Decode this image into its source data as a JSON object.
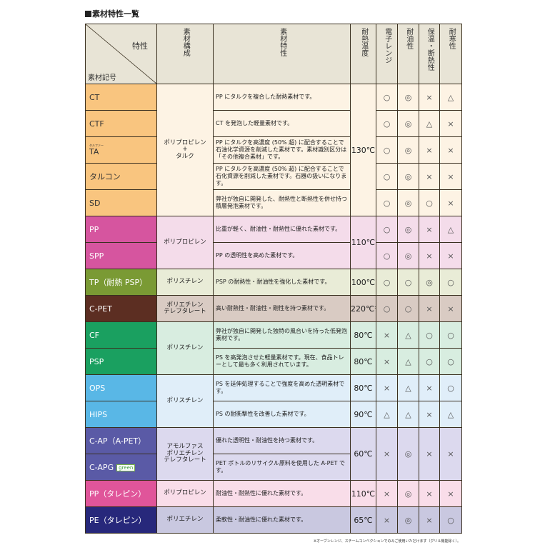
{
  "title": "素材特性一覧",
  "header": {
    "property": "特性",
    "material_code": "素材記号",
    "composition": "素材構成",
    "characteristics": "素材特性",
    "heat": "耐熱温度",
    "microwave": "電子レンジ",
    "oil": "耐油性",
    "insulation": "保温・断熱性",
    "cold": "耐寒性"
  },
  "groups": [
    {
      "code_bg": "#f9c57f",
      "code_color": "#333333",
      "bg": "#fdf3e4",
      "composition": "ポリプロピレン\n+\nタルク",
      "rows": [
        {
          "code": "CT",
          "desc": "PP にタルクを複合した耐熱素材です。",
          "temp": "130℃",
          "marks": [
            "○",
            "◎",
            "×",
            "△"
          ]
        },
        {
          "code": "CTF",
          "desc": "CT を発泡した軽量素材です。",
          "temp": "",
          "marks": [
            "○",
            "◎",
            "△",
            "×"
          ]
        },
        {
          "code": "TA",
          "ruby": "タルファー",
          "desc": "PP にタルクを高濃度 (50% 超) に配合することで石油化学資源を削減した素材です。素材識別区分は「その他複合素材」です。",
          "temp": "",
          "marks": [
            "○",
            "◎",
            "×",
            "×"
          ]
        },
        {
          "code": "タルコン",
          "desc": "PP にタルクを高濃度 (50% 超) に配合することで石化資源を削減した素材です。石器の扱いになります。",
          "temp": "",
          "marks": [
            "○",
            "◎",
            "×",
            "×"
          ]
        },
        {
          "code": "SD",
          "desc": "弊社が独自に開発した、耐熱性と断熱性を併せ持つ積層発泡素材です。",
          "temp": "",
          "marks": [
            "○",
            "◎",
            "○",
            "×"
          ]
        }
      ]
    },
    {
      "code_bg": "#d6559f",
      "code_color": "#ffffff",
      "bg": "#f4dcea",
      "composition": "ポリプロピレン",
      "rows": [
        {
          "code": "PP",
          "desc": "比重が軽く、耐油性・耐熱性に優れた素材です。",
          "temp": "110℃",
          "marks": [
            "○",
            "◎",
            "×",
            "△"
          ]
        },
        {
          "code": "SPP",
          "desc": "PP の透明性を高めた素材です。",
          "temp": "",
          "marks": [
            "○",
            "◎",
            "×",
            "×"
          ]
        }
      ]
    },
    {
      "code_bg": "#7a9a34",
      "code_color": "#ffffff",
      "bg": "#e9ecd7",
      "composition": "ポリスチレン",
      "rows": [
        {
          "code": "TP（耐熱 PSP）",
          "desc": "PSP の耐熱性・耐油性を強化した素材です。",
          "temp": "100℃",
          "marks": [
            "○",
            "○",
            "◎",
            "○"
          ]
        }
      ]
    },
    {
      "code_bg": "#5c2e22",
      "code_color": "#ffffff",
      "bg": "#d9cbc3",
      "composition": "ポリエチレン\nテレフタレート",
      "rows": [
        {
          "code": "C-PET",
          "desc": "高い耐熱性・耐油性・剛性を持つ素材です。",
          "temp": "220℃*",
          "marks": [
            "○",
            "○",
            "×",
            "×"
          ]
        }
      ]
    },
    {
      "code_bg": "#1aa060",
      "code_color": "#ffffff",
      "bg": "#d8ede0",
      "composition": "ポリスチレン",
      "rows": [
        {
          "code": "CF",
          "desc": "弊社が独自に開発した独特の風合いを持った低発泡素材です。",
          "temp": "80℃",
          "marks": [
            "×",
            "△",
            "○",
            "○"
          ]
        },
        {
          "code": "PSP",
          "desc": "PS を高発泡させた軽量素材です。現在、食品トレーとして最も多く利用されています。",
          "temp": "80℃",
          "marks": [
            "×",
            "△",
            "○",
            "○"
          ]
        }
      ]
    },
    {
      "code_bg": "#59b7e6",
      "code_color": "#ffffff",
      "bg": "#e0eef9",
      "composition": "ポリスチレン",
      "rows": [
        {
          "code": "OPS",
          "desc": "PS を延伸処理することで強度を高めた透明素材です。",
          "temp": "80℃",
          "marks": [
            "×",
            "△",
            "×",
            "○"
          ]
        },
        {
          "code": "HIPS",
          "desc": "PS の耐衝撃性を改善した素材です。",
          "temp": "90℃",
          "marks": [
            "△",
            "△",
            "×",
            "△"
          ]
        }
      ]
    },
    {
      "code_bg": "#5a5aa6",
      "code_color": "#ffffff",
      "bg": "#dcd9ee",
      "composition": "アモルファス\nポリエチレン\nテレフタレート",
      "rows": [
        {
          "code": "C-AP（A-PET）",
          "desc": "優れた透明性・耐油性を持つ素材です。",
          "temp": "60℃",
          "marks": [
            "×",
            "◎",
            "×",
            "×"
          ]
        },
        {
          "code": "C-APG",
          "badge": "green",
          "desc": "PET ボトルのリサイクル原料を使用した A-PET です。",
          "temp": "",
          "marks": null
        }
      ]
    },
    {
      "code_bg": "#e0559a",
      "code_color": "#ffffff",
      "bg": "#f9dde9",
      "composition": "ポリプロピレン",
      "rows": [
        {
          "code": "PP（タレピン）",
          "desc": "耐油性・耐熱性に優れた素材です。",
          "temp": "110℃",
          "marks": [
            "×",
            "◎",
            "×",
            "×"
          ]
        }
      ]
    },
    {
      "code_bg": "#27287b",
      "code_color": "#ffffff",
      "bg": "#c9c8e0",
      "composition": "ポリエチレン",
      "rows": [
        {
          "code": "PE（タレピン）",
          "desc": "柔軟性・耐油性に優れた素材です。",
          "temp": "65℃",
          "marks": [
            "×",
            "◎",
            "×",
            "○"
          ]
        }
      ]
    }
  ],
  "footnote": "※オーブンレンジ、スチームコンベクションでのみご使用いただけます（グリル機能除く）。"
}
